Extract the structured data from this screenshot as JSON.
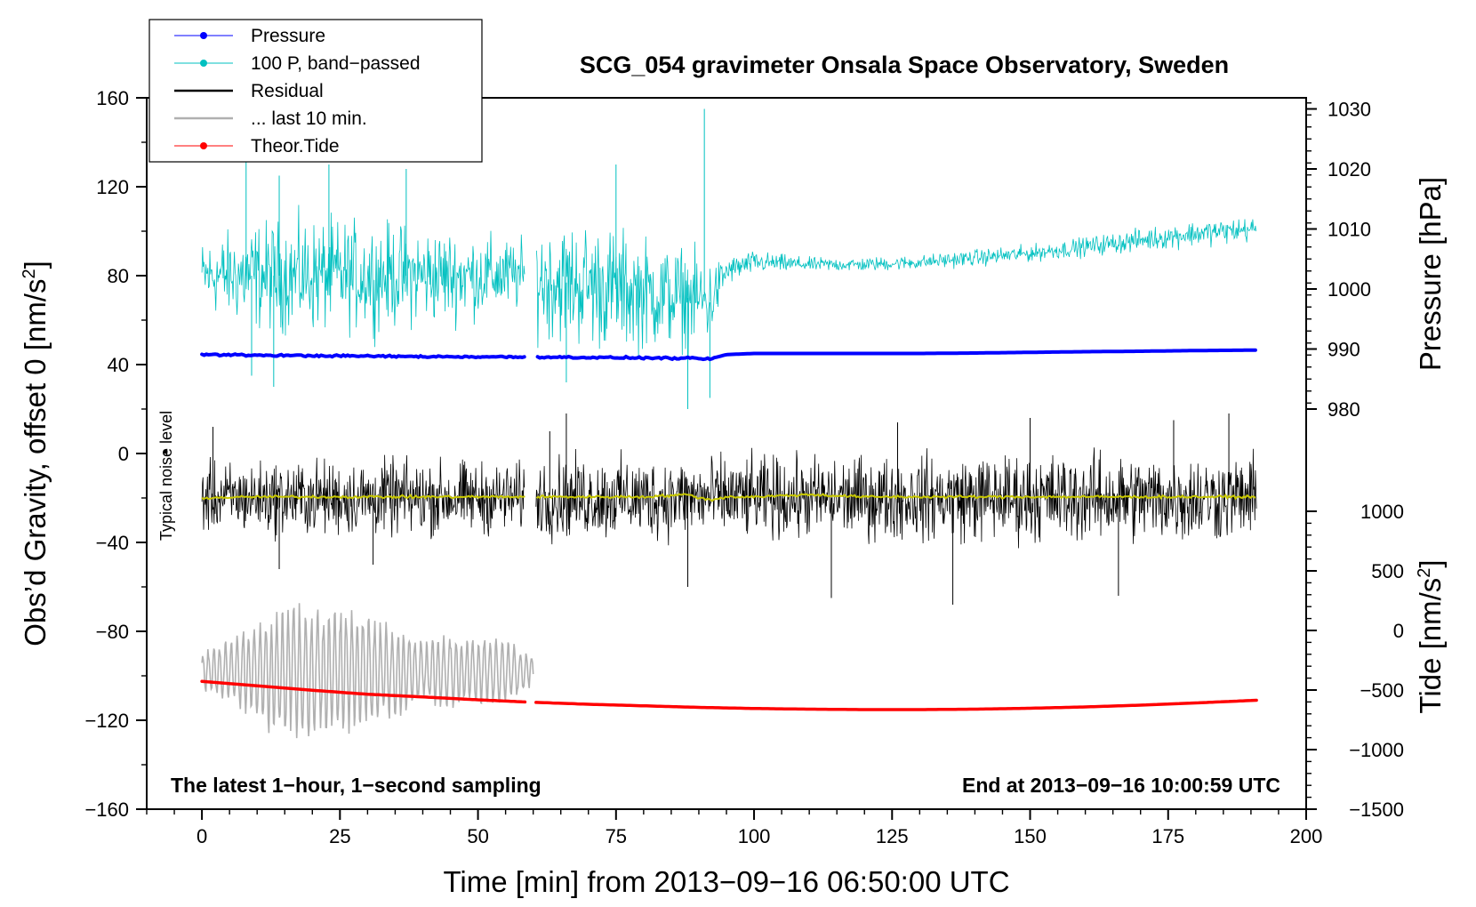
{
  "chart_data": {
    "type": "line",
    "title": "SCG_054 gravimeter Onsala Space Observatory, Sweden",
    "xlabel": "Time [min] from 2013−09−16 06:50:00 UTC",
    "ylabel_left_main": "Obs’d Gravity, offset 0 [nm/s",
    "ylabel_left_sup": "2",
    "ylabel_left_close": "]",
    "ylabel_right_pressure": "Pressure [hPa]",
    "ylabel_right_tide_main": "Tide [nm/s",
    "ylabel_right_tide_sup": "2",
    "ylabel_right_tide_close": "]",
    "xlim": [
      -10,
      200
    ],
    "ylim": [
      -160,
      160
    ],
    "pressure_axis_range": [
      980,
      1030
    ],
    "pressure_axis_position": [
      20,
      155
    ],
    "tide_axis_range": [
      -1500,
      1000
    ],
    "tide_axis_position": [
      -160,
      -26
    ],
    "x_ticks": [
      "0",
      "25",
      "50",
      "75",
      "100",
      "125",
      "150",
      "175",
      "200"
    ],
    "x_tick_values": [
      0,
      25,
      50,
      75,
      100,
      125,
      150,
      175,
      200
    ],
    "y_ticks": [
      "−160",
      "−120",
      "−80",
      "−40",
      "0",
      "40",
      "80",
      "120",
      "160"
    ],
    "y_tick_values": [
      -160,
      -120,
      -80,
      -40,
      0,
      40,
      80,
      120,
      160
    ],
    "pressure_ticks": [
      "980",
      "990",
      "1000",
      "1010",
      "1020",
      "1030"
    ],
    "pressure_tick_values": [
      980,
      990,
      1000,
      1010,
      1020,
      1030
    ],
    "tide_ticks": [
      "−1500",
      "−1000",
      "−500",
      "0",
      "500",
      "1000"
    ],
    "tide_tick_values": [
      -1500,
      -1000,
      -500,
      0,
      500,
      1000
    ],
    "legend_position": "top-left",
    "legend": [
      {
        "label": "Pressure",
        "color": "#0000ff",
        "marker": true
      },
      {
        "label": "100 P, band−passed",
        "color": "#00c0c0",
        "marker": true
      },
      {
        "label": "Residual",
        "color": "#000000",
        "marker": false
      },
      {
        "label": "... last 10 min.",
        "color": "#b0b0b0",
        "marker": false
      },
      {
        "label": "Theor.Tide",
        "color": "#ff0000",
        "marker": true
      }
    ],
    "annotations": {
      "bottom_left": "The latest 1−hour, 1−second sampling",
      "bottom_right": "End at 2013−09−16 10:00:59 UTC",
      "noise_label": "Typical noise level"
    },
    "gap_minutes": [
      58.5,
      60.5
    ],
    "series": [
      {
        "name": "Pressure",
        "color": "#0000ff",
        "x": [
          0,
          10,
          20,
          30,
          40,
          50,
          58,
          61,
          70,
          80,
          88,
          92,
          95,
          100,
          110,
          120,
          130,
          140,
          150,
          160,
          170,
          180,
          191
        ],
        "y": [
          44.5,
          44.2,
          44.0,
          43.8,
          43.6,
          43.5,
          43.4,
          43.4,
          43.2,
          43.0,
          42.8,
          42.5,
          44.5,
          45.0,
          45.0,
          45.0,
          45.0,
          45.2,
          45.5,
          45.8,
          46.0,
          46.3,
          46.5
        ]
      },
      {
        "name": "100 P, band−passed",
        "color": "#00c0c0",
        "envelope_x": [
          0,
          10,
          20,
          30,
          40,
          50,
          58,
          61,
          70,
          80,
          88,
          92,
          95,
          100,
          110,
          120,
          130,
          140,
          150,
          160,
          170,
          180,
          191
        ],
        "envelope_center": [
          80,
          80,
          80,
          80,
          80,
          80,
          80,
          78,
          76,
          72,
          70,
          68,
          82,
          86,
          85,
          85,
          86,
          88,
          90,
          93,
          96,
          99,
          101
        ],
        "envelope_half_width": [
          25,
          38,
          40,
          38,
          35,
          30,
          25,
          40,
          45,
          40,
          35,
          30,
          10,
          8,
          5,
          5,
          5,
          6,
          6,
          7,
          8,
          9,
          9
        ],
        "spikes": [
          [
            8,
            135
          ],
          [
            9,
            35
          ],
          [
            13,
            30
          ],
          [
            14,
            125
          ],
          [
            23,
            130
          ],
          [
            37,
            128
          ],
          [
            66,
            32
          ],
          [
            75,
            130
          ],
          [
            88,
            20
          ],
          [
            91,
            155
          ],
          [
            92,
            25
          ]
        ]
      },
      {
        "name": "Residual",
        "color": "#000000",
        "center": -20,
        "envelope_x": [
          0,
          20,
          40,
          58,
          61,
          80,
          100,
          120,
          140,
          160,
          180,
          191
        ],
        "envelope_half_width": [
          22,
          24,
          24,
          22,
          26,
          26,
          26,
          26,
          28,
          28,
          28,
          26
        ],
        "spikes": [
          [
            2,
            12
          ],
          [
            14,
            -52
          ],
          [
            31,
            -50
          ],
          [
            63,
            10
          ],
          [
            66,
            18
          ],
          [
            88,
            -60
          ],
          [
            114,
            -65
          ],
          [
            126,
            14
          ],
          [
            136,
            -68
          ],
          [
            150,
            16
          ],
          [
            166,
            -64
          ],
          [
            176,
            15
          ],
          [
            186,
            18
          ]
        ]
      },
      {
        "name": "Typical noise level",
        "color": "#c8c800",
        "x": [
          0,
          10,
          20,
          30,
          40,
          50,
          58,
          61,
          70,
          80,
          88,
          92,
          95,
          100,
          110,
          120,
          130,
          140,
          150,
          160,
          170,
          180,
          191
        ],
        "y": [
          -20,
          -19.5,
          -19.5,
          -19.5,
          -19.5,
          -19.5,
          -19.5,
          -19.5,
          -19.5,
          -19.5,
          -18.5,
          -21,
          -19.5,
          -19.5,
          -18.5,
          -19.5,
          -19.5,
          -19.5,
          -19.5,
          -19.5,
          -19.5,
          -19.5,
          -19.5
        ]
      },
      {
        "name": "... last 10 min.",
        "color": "#b0b0b0",
        "center": -98,
        "x_range": [
          0,
          60
        ],
        "amplitude_x": [
          0,
          5,
          10,
          15,
          20,
          25,
          30,
          35,
          40,
          45,
          50,
          55,
          60
        ],
        "amplitude": [
          10,
          15,
          25,
          32,
          30,
          32,
          28,
          22,
          14,
          18,
          16,
          15,
          8
        ]
      },
      {
        "name": "Theor.Tide",
        "color": "#ff0000",
        "x": [
          0,
          10,
          20,
          30,
          40,
          50,
          58,
          61,
          70,
          80,
          90,
          100,
          110,
          120,
          130,
          140,
          150,
          160,
          170,
          180,
          191
        ],
        "y": [
          -102.5,
          -104.5,
          -106.5,
          -108.3,
          -109.5,
          -110.8,
          -111.7,
          -112.0,
          -112.8,
          -113.5,
          -114.2,
          -114.7,
          -115.0,
          -115.2,
          -115.2,
          -115.0,
          -114.6,
          -114.0,
          -113.2,
          -112.2,
          -111.0
        ]
      }
    ]
  }
}
